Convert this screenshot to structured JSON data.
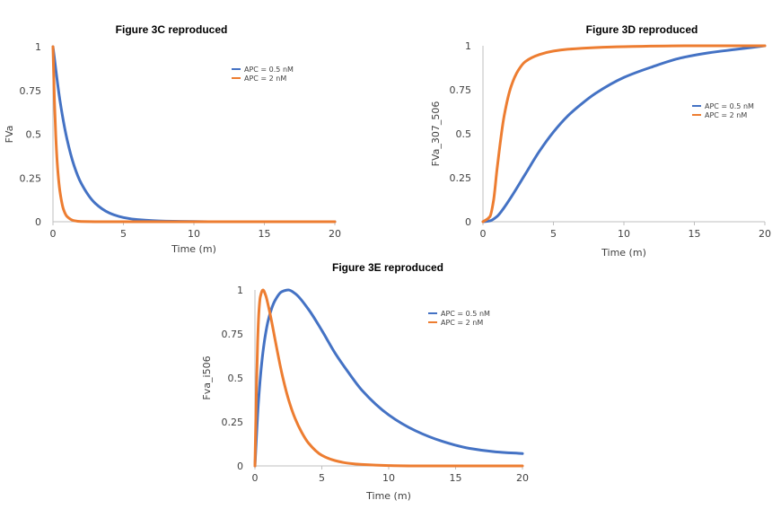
{
  "chart_data": [
    {
      "id": "c3c",
      "type": "line",
      "title": "Figure 3C reproduced",
      "xlabel": "Time (m)",
      "ylabel": "FVa",
      "xlim": [
        0,
        20
      ],
      "ylim": [
        0,
        1
      ],
      "xticks": [
        "0",
        "5",
        "10",
        "15",
        "20"
      ],
      "yticks": [
        "0",
        "0.25",
        "0.5",
        "0.75",
        "1"
      ],
      "legend_position": "top-right",
      "series": [
        {
          "name": "APC = 0.5 nM",
          "color": "#4472c4",
          "x": [
            0,
            0.5,
            1,
            1.5,
            2,
            3,
            4,
            5,
            6,
            8,
            10,
            12,
            15,
            20
          ],
          "y": [
            1,
            0.69,
            0.47,
            0.32,
            0.22,
            0.105,
            0.05,
            0.024,
            0.012,
            0.003,
            0.001,
            0,
            0,
            0
          ]
        },
        {
          "name": "APC = 2 nM",
          "color": "#ed7d31",
          "x": [
            0,
            0.1,
            0.2,
            0.3,
            0.4,
            0.5,
            0.75,
            1,
            1.5,
            2,
            3,
            5,
            10,
            20
          ],
          "y": [
            1,
            0.7,
            0.49,
            0.34,
            0.24,
            0.17,
            0.07,
            0.03,
            0.006,
            0.001,
            0,
            0,
            0,
            0
          ]
        }
      ]
    },
    {
      "id": "c3d",
      "type": "line",
      "title": "Figure 3D reproduced",
      "xlabel": "Time (m)",
      "ylabel": "FVa_307_506",
      "xlim": [
        0,
        20
      ],
      "ylim": [
        0,
        1
      ],
      "xticks": [
        "0",
        "5",
        "10",
        "15",
        "20"
      ],
      "yticks": [
        "0",
        "0.25",
        "0.5",
        "0.75",
        "1"
      ],
      "legend_position": "right",
      "series": [
        {
          "name": "APC = 0.5 nM",
          "color": "#4472c4",
          "x": [
            0,
            0.5,
            1,
            1.5,
            2,
            3,
            4,
            5,
            6,
            7,
            8,
            10,
            12,
            14,
            16,
            18,
            20
          ],
          "y": [
            0,
            0.005,
            0.03,
            0.08,
            0.14,
            0.27,
            0.4,
            0.51,
            0.6,
            0.67,
            0.73,
            0.82,
            0.88,
            0.93,
            0.96,
            0.98,
            1
          ]
        },
        {
          "name": "APC = 2 nM",
          "color": "#ed7d31",
          "x": [
            0,
            0.5,
            0.75,
            1,
            1.5,
            2,
            2.5,
            3,
            4,
            5,
            6,
            8,
            10,
            15,
            20
          ],
          "y": [
            0,
            0.03,
            0.12,
            0.3,
            0.6,
            0.77,
            0.86,
            0.91,
            0.95,
            0.97,
            0.98,
            0.99,
            0.995,
            1,
            1
          ]
        }
      ]
    },
    {
      "id": "c3e",
      "type": "line",
      "title": "Figure 3E reproduced",
      "xlabel": "Time (m)",
      "ylabel": "Fva_i506",
      "xlim": [
        0,
        20
      ],
      "ylim": [
        0,
        1
      ],
      "xticks": [
        "0",
        "5",
        "10",
        "15",
        "20"
      ],
      "yticks": [
        "0",
        "0.25",
        "0.5",
        "0.75",
        "1"
      ],
      "legend_position": "top-right",
      "series": [
        {
          "name": "APC = 0.5 nM",
          "color": "#4472c4",
          "x": [
            0,
            0.25,
            0.5,
            0.75,
            1,
            1.5,
            2,
            2.5,
            3,
            4,
            5,
            6,
            7,
            8,
            10,
            12,
            14,
            16,
            18,
            20
          ],
          "y": [
            0,
            0.35,
            0.58,
            0.73,
            0.83,
            0.94,
            0.99,
            1,
            0.98,
            0.89,
            0.77,
            0.64,
            0.53,
            0.43,
            0.29,
            0.2,
            0.14,
            0.1,
            0.08,
            0.07
          ]
        },
        {
          "name": "APC = 2 nM",
          "color": "#ed7d31",
          "x": [
            0,
            0.1,
            0.2,
            0.3,
            0.4,
            0.6,
            0.8,
            1,
            1.25,
            1.5,
            2,
            2.5,
            3,
            3.5,
            4,
            5,
            6,
            7,
            8,
            10,
            12,
            15,
            20
          ],
          "y": [
            0,
            0.4,
            0.7,
            0.88,
            0.96,
            1,
            0.97,
            0.91,
            0.82,
            0.72,
            0.53,
            0.38,
            0.27,
            0.19,
            0.13,
            0.06,
            0.03,
            0.015,
            0.008,
            0.002,
            0,
            0,
            0
          ]
        }
      ]
    }
  ]
}
